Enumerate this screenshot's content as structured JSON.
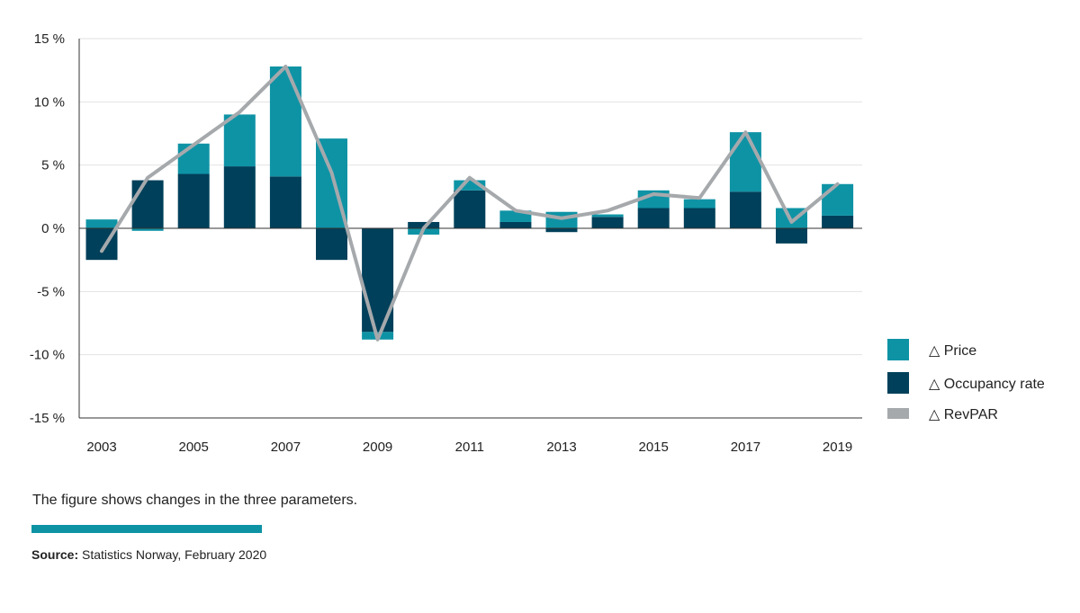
{
  "chart_data": {
    "type": "bar",
    "categories": [
      "2003",
      "2004",
      "2005",
      "2006",
      "2007",
      "2008",
      "2009",
      "2010",
      "2011",
      "2012",
      "2013",
      "2014",
      "2015",
      "2016",
      "2017",
      "2018",
      "2019"
    ],
    "x_tick_labels": [
      "2003",
      "2005",
      "2007",
      "2009",
      "2011",
      "2013",
      "2015",
      "2017",
      "2019"
    ],
    "y_tick_labels": [
      "15 %",
      "10 %",
      "5 %",
      "0 %",
      "-5 %",
      "-10 %",
      "-15 %"
    ],
    "ylim": [
      -15,
      15
    ],
    "y_ticks": [
      15,
      10,
      5,
      0,
      -5,
      -10,
      -15
    ],
    "grid": true,
    "legend_position": "right",
    "series": [
      {
        "name": "△ Price",
        "kind": "bar",
        "color": "#0e93a5",
        "values": [
          0.7,
          -0.2,
          2.4,
          4.1,
          8.7,
          7.1,
          -0.6,
          -0.5,
          0.8,
          0.9,
          1.3,
          0.2,
          1.4,
          0.7,
          4.7,
          1.6,
          2.5
        ]
      },
      {
        "name": "△ Occupancy rate",
        "kind": "bar",
        "color": "#00405a",
        "values": [
          -2.5,
          3.8,
          4.3,
          4.9,
          4.1,
          -2.5,
          -8.2,
          0.5,
          3.0,
          0.5,
          -0.3,
          0.9,
          1.6,
          1.6,
          2.9,
          -1.2,
          1.0
        ]
      },
      {
        "name": "△ RevPAR",
        "kind": "line",
        "color": "#a6a9ac",
        "values": [
          -1.8,
          4.0,
          6.6,
          9.2,
          12.8,
          4.4,
          -8.8,
          0.0,
          4.0,
          1.4,
          0.8,
          1.4,
          2.7,
          2.4,
          7.6,
          0.5,
          3.5
        ]
      }
    ]
  },
  "caption": "The figure shows changes in the three parameters.",
  "source": {
    "label": "Source:",
    "text": " Statistics Norway, February 2020"
  },
  "colors": {
    "accent": "#0e93a5",
    "dark": "#00405a",
    "line": "#a6a9ac"
  }
}
